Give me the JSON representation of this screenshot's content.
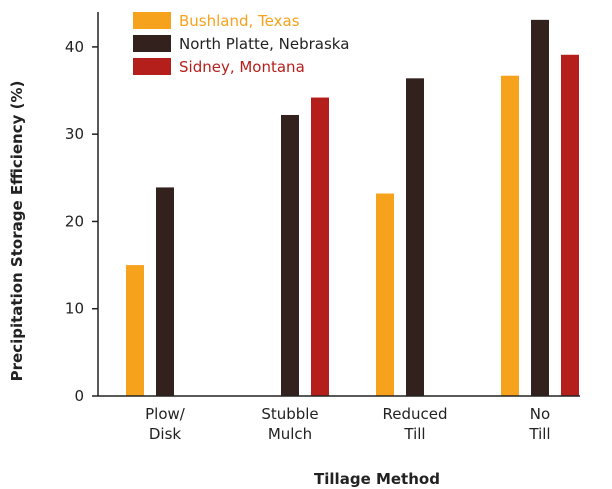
{
  "chart_data": {
    "type": "bar",
    "title": "",
    "xlabel": "Tillage Method",
    "ylabel": "Precipitation Storage Efficiency (%)",
    "ylim": [
      0,
      44
    ],
    "yticks": [
      "0",
      "10",
      "20",
      "30",
      "40"
    ],
    "ytick_values": [
      0,
      10,
      20,
      30,
      40
    ],
    "categories": [
      [
        "Plow/",
        "Disk"
      ],
      [
        "Stubble",
        "Mulch"
      ],
      [
        "Reduced",
        "Till"
      ],
      [
        "No",
        "Till"
      ]
    ],
    "series": [
      {
        "name": "Bushland, Texas",
        "color": "#F7A21D",
        "label_color": "#F7A21D",
        "values": [
          15,
          null,
          23.2,
          36.7
        ]
      },
      {
        "name": "North Platte, Nebraska",
        "color": "#33211D",
        "label_color": "#222222",
        "values": [
          23.9,
          32.2,
          36.4,
          43.1
        ]
      },
      {
        "name": "Sidney, Montana",
        "color": "#B51F1B",
        "label_color": "#B51F1B",
        "values": [
          null,
          34.2,
          null,
          39.1
        ]
      }
    ],
    "legend_position": "top-left",
    "grid": false
  }
}
